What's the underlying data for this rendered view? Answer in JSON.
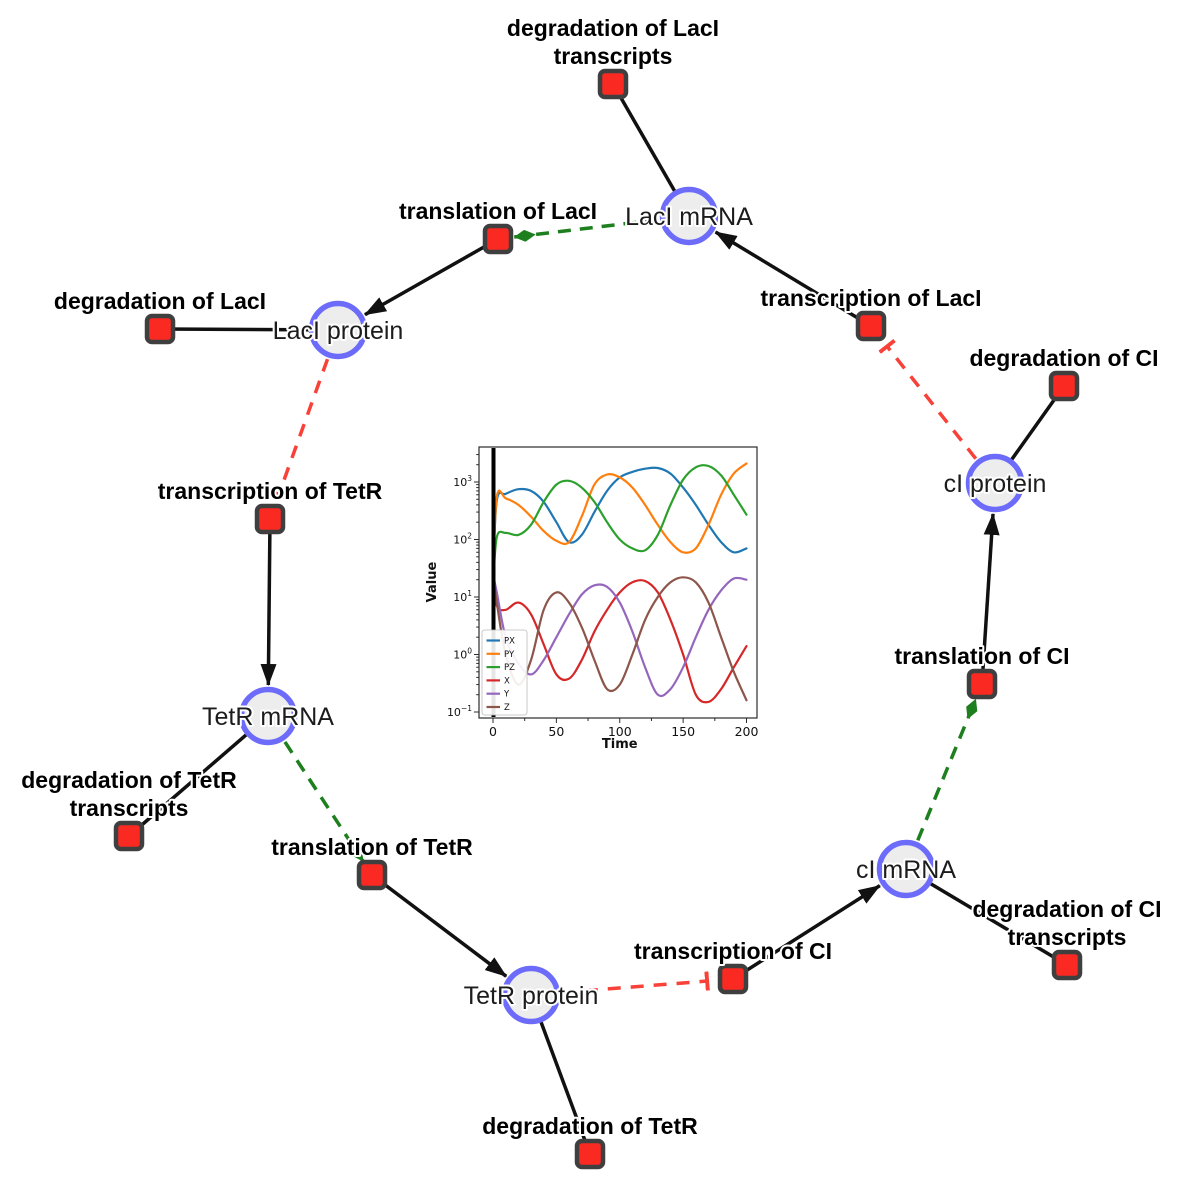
{
  "diagram": {
    "species_nodes": [
      {
        "id": "laci_mrna",
        "label": "LacI mRNA"
      },
      {
        "id": "laci_protein",
        "label": "LacI protein"
      },
      {
        "id": "ci_protein",
        "label": "cI protein"
      },
      {
        "id": "tetr_mrna",
        "label": "TetR mRNA"
      },
      {
        "id": "ci_mrna",
        "label": "cI mRNA"
      },
      {
        "id": "tetr_protein",
        "label": "TetR protein"
      }
    ],
    "reaction_nodes": [
      {
        "id": "deg_laci_tr",
        "label_lines": [
          "degradation of LacI",
          "transcripts"
        ]
      },
      {
        "id": "transl_laci",
        "label_lines": [
          "translation of LacI"
        ]
      },
      {
        "id": "deg_laci",
        "label_lines": [
          "degradation of LacI"
        ]
      },
      {
        "id": "transc_laci",
        "label_lines": [
          "transcription of LacI"
        ]
      },
      {
        "id": "deg_ci",
        "label_lines": [
          "degradation of CI"
        ]
      },
      {
        "id": "transc_tetr",
        "label_lines": [
          "transcription of TetR"
        ]
      },
      {
        "id": "deg_tetr_tr",
        "label_lines": [
          "degradation of TetR",
          "transcripts"
        ]
      },
      {
        "id": "transl_tetr",
        "label_lines": [
          "translation of TetR"
        ]
      },
      {
        "id": "deg_tetr",
        "label_lines": [
          "degradation of TetR"
        ]
      },
      {
        "id": "transc_ci",
        "label_lines": [
          "transcription of CI"
        ]
      },
      {
        "id": "deg_ci_tr",
        "label_lines": [
          "degradation of CI",
          "transcripts"
        ]
      },
      {
        "id": "transl_ci",
        "label_lines": [
          "translation of CI"
        ]
      }
    ],
    "edges": [
      {
        "from": "laci_mrna",
        "to": "deg_laci_tr",
        "type": "consumption"
      },
      {
        "from": "laci_protein",
        "to": "deg_laci",
        "type": "consumption"
      },
      {
        "from": "ci_protein",
        "to": "deg_ci",
        "type": "consumption"
      },
      {
        "from": "tetr_mrna",
        "to": "deg_tetr_tr",
        "type": "consumption"
      },
      {
        "from": "ci_mrna",
        "to": "deg_ci_tr",
        "type": "consumption"
      },
      {
        "from": "tetr_protein",
        "to": "deg_tetr",
        "type": "consumption"
      },
      {
        "from": "transc_laci",
        "to": "laci_mrna",
        "type": "production"
      },
      {
        "from": "transl_laci",
        "to": "laci_protein",
        "type": "production"
      },
      {
        "from": "transc_tetr",
        "to": "tetr_mrna",
        "type": "production"
      },
      {
        "from": "transl_tetr",
        "to": "tetr_protein",
        "type": "production"
      },
      {
        "from": "transc_ci",
        "to": "ci_mrna",
        "type": "production"
      },
      {
        "from": "transl_ci",
        "to": "ci_protein",
        "type": "production"
      },
      {
        "from": "laci_mrna",
        "to": "transl_laci",
        "type": "modifier"
      },
      {
        "from": "tetr_mrna",
        "to": "transl_tetr",
        "type": "modifier"
      },
      {
        "from": "ci_mrna",
        "to": "transl_ci",
        "type": "modifier"
      },
      {
        "from": "laci_protein",
        "to": "transc_tetr",
        "type": "inhibition"
      },
      {
        "from": "tetr_protein",
        "to": "transc_ci",
        "type": "inhibition"
      },
      {
        "from": "ci_protein",
        "to": "transc_laci",
        "type": "inhibition"
      }
    ],
    "colors": {
      "species_fill": "#ededed",
      "species_border": "#6d6cfa",
      "reaction_fill": "#fa2a22",
      "reaction_border": "#3f3f3f",
      "consumption_edge": "#111111",
      "production_edge": "#111111",
      "modifier_edge": "#1d7f1d",
      "inhibition_edge": "#f84138"
    }
  },
  "chart_data": {
    "type": "line",
    "title": "",
    "xlabel": "Time",
    "ylabel": "Value",
    "x_ticks": [
      0,
      50,
      100,
      150,
      200
    ],
    "x_minor_ticks": [
      25,
      75,
      125,
      175
    ],
    "y_scale": "log",
    "y_tick_exponents": [
      3,
      2,
      1,
      0,
      -1
    ],
    "xlim": [
      -10,
      209
    ],
    "ylim_log10": [
      -1.1,
      3.6
    ],
    "legend_position": "lower left",
    "legend_labels": [
      "PX",
      "PY",
      "PZ",
      "X",
      "Y",
      "Z"
    ],
    "t0_spike_line": true,
    "x": [
      0,
      3,
      10,
      20,
      30,
      40,
      50,
      60,
      70,
      80,
      90,
      100,
      110,
      120,
      130,
      140,
      150,
      160,
      170,
      180,
      190,
      200
    ],
    "series": [
      {
        "name": "PX",
        "color": "#1f77b4",
        "values": [
          25,
          480,
          620,
          750,
          700,
          450,
          200,
          90,
          120,
          300,
          700,
          1200,
          1500,
          1700,
          1750,
          1400,
          800,
          400,
          180,
          90,
          60,
          70
        ]
      },
      {
        "name": "PY",
        "color": "#ff7f0e",
        "values": [
          20,
          560,
          520,
          400,
          250,
          140,
          95,
          90,
          250,
          900,
          1350,
          1200,
          800,
          400,
          180,
          90,
          60,
          70,
          180,
          600,
          1400,
          2100
        ]
      },
      {
        "name": "PZ",
        "color": "#2ca02c",
        "values": [
          15,
          110,
          130,
          120,
          180,
          450,
          900,
          1050,
          800,
          450,
          200,
          100,
          70,
          65,
          120,
          400,
          1100,
          1800,
          1900,
          1300,
          600,
          270
        ]
      },
      {
        "name": "X",
        "color": "#d62728",
        "values": [
          22,
          7,
          6,
          8,
          5,
          1.5,
          0.45,
          0.38,
          0.8,
          2.5,
          6,
          12,
          18,
          19,
          12,
          4,
          1,
          0.2,
          0.15,
          0.25,
          0.6,
          1.4
        ]
      },
      {
        "name": "Y",
        "color": "#9467bd",
        "values": [
          25,
          12,
          2,
          0.7,
          0.45,
          0.8,
          2,
          5,
          11,
          16,
          15,
          8,
          2.5,
          0.6,
          0.2,
          0.25,
          0.6,
          2,
          6,
          13,
          21,
          20
        ]
      },
      {
        "name": "Z",
        "color": "#8c564b",
        "values": [
          25,
          8,
          1,
          0.3,
          0.8,
          6,
          12,
          8,
          3,
          0.8,
          0.25,
          0.3,
          1,
          4,
          10,
          18,
          22,
          18,
          8,
          2,
          0.5,
          0.16
        ]
      }
    ]
  }
}
